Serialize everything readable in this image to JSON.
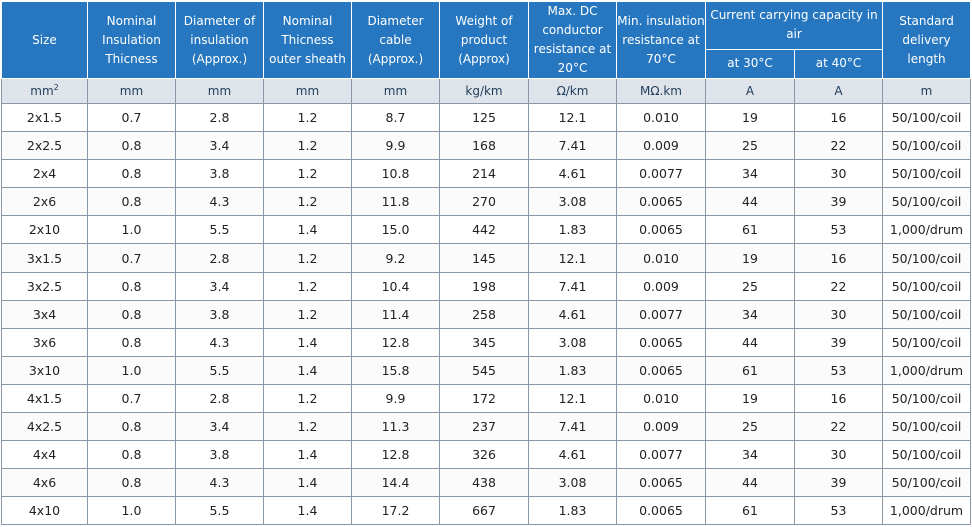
{
  "headers": {
    "size": "Size",
    "nominal_insulation": "Nominal Insulation Thicness",
    "diameter_insulation": "Diameter of insulation (Approx.)",
    "nominal_outer_sheath": "Nominal Thicness outer sheath",
    "diameter_cable": "Diameter cable (Approx.)",
    "weight": "Weight of product (Approx)",
    "max_dc": "Max. DC conductor resistance at 20°C",
    "min_insulation": "Min. insulation resistance at 70°C",
    "current_group": "Current carrying capacity in air",
    "at30": "at 30°C",
    "at40": "at 40°C",
    "delivery": "Standard delivery length"
  },
  "units": {
    "size": "mm",
    "size_sup": "2",
    "nominal_insulation": "mm",
    "diameter_insulation": "mm",
    "nominal_outer_sheath": "mm",
    "diameter_cable": "mm",
    "weight": "kg/km",
    "max_dc": "Ω/km",
    "min_insulation": "MΩ.km",
    "at30": "A",
    "at40": "A",
    "delivery": "m"
  },
  "rows": [
    [
      "2x1.5",
      "0.7",
      "2.8",
      "1.2",
      "8.7",
      "125",
      "12.1",
      "0.010",
      "19",
      "16",
      "50/100/coil"
    ],
    [
      "2x2.5",
      "0.8",
      "3.4",
      "1.2",
      "9.9",
      "168",
      "7.41",
      "0.009",
      "25",
      "22",
      "50/100/coil"
    ],
    [
      "2x4",
      "0.8",
      "3.8",
      "1.2",
      "10.8",
      "214",
      "4.61",
      "0.0077",
      "34",
      "30",
      "50/100/coil"
    ],
    [
      "2x6",
      "0.8",
      "4.3",
      "1.2",
      "11.8",
      "270",
      "3.08",
      "0.0065",
      "44",
      "39",
      "50/100/coil"
    ],
    [
      "2x10",
      "1.0",
      "5.5",
      "1.4",
      "15.0",
      "442",
      "1.83",
      "0.0065",
      "61",
      "53",
      "1,000/drum"
    ],
    [
      "3x1.5",
      "0.7",
      "2.8",
      "1.2",
      "9.2",
      "145",
      "12.1",
      "0.010",
      "19",
      "16",
      "50/100/coil"
    ],
    [
      "3x2.5",
      "0.8",
      "3.4",
      "1.2",
      "10.4",
      "198",
      "7.41",
      "0.009",
      "25",
      "22",
      "50/100/coil"
    ],
    [
      "3x4",
      "0.8",
      "3.8",
      "1.2",
      "11.4",
      "258",
      "4.61",
      "0.0077",
      "34",
      "30",
      "50/100/coil"
    ],
    [
      "3x6",
      "0.8",
      "4.3",
      "1.4",
      "12.8",
      "345",
      "3.08",
      "0.0065",
      "44",
      "39",
      "50/100/coil"
    ],
    [
      "3x10",
      "1.0",
      "5.5",
      "1.4",
      "15.8",
      "545",
      "1.83",
      "0.0065",
      "61",
      "53",
      "1,000/drum"
    ],
    [
      "4x1.5",
      "0.7",
      "2.8",
      "1.2",
      "9.9",
      "172",
      "12.1",
      "0.010",
      "19",
      "16",
      "50/100/coil"
    ],
    [
      "4x2.5",
      "0.8",
      "3.4",
      "1.2",
      "11.3",
      "237",
      "7.41",
      "0.009",
      "25",
      "22",
      "50/100/coil"
    ],
    [
      "4x4",
      "0.8",
      "3.8",
      "1.4",
      "12.8",
      "326",
      "4.61",
      "0.0077",
      "34",
      "30",
      "50/100/coil"
    ],
    [
      "4x6",
      "0.8",
      "4.3",
      "1.4",
      "14.4",
      "438",
      "3.08",
      "0.0065",
      "44",
      "39",
      "50/100/coil"
    ],
    [
      "4x10",
      "1.0",
      "5.5",
      "1.4",
      "17.2",
      "667",
      "1.83",
      "0.0065",
      "61",
      "53",
      "1,000/drum"
    ]
  ],
  "colors": {
    "header_bg": "#2677c0",
    "units_bg": "#dfe4ea",
    "grid": "#8a97a6"
  }
}
